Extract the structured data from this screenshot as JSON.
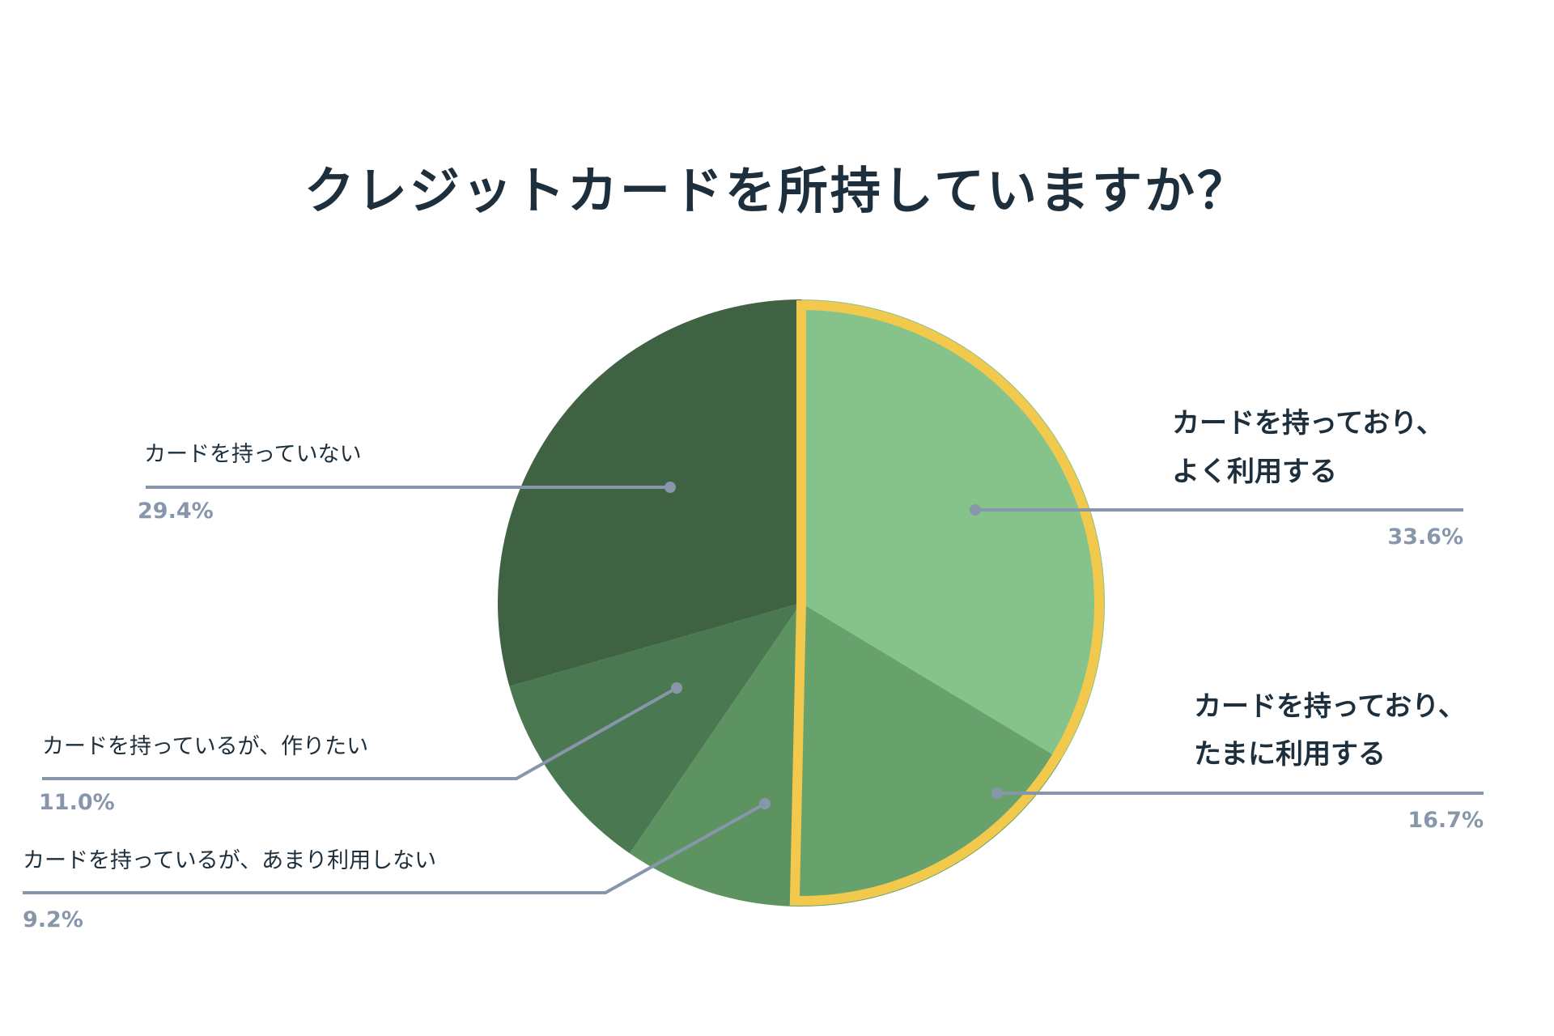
{
  "chart_data": {
    "type": "pie",
    "title": "クレジットカードを所持していますか？",
    "slices": [
      {
        "label": "カードを持っており、\nよく利用する",
        "value": 33.6,
        "value_label": "33.6%",
        "color": "#86c38a",
        "highlight": true
      },
      {
        "label": "カードを持っており、\nたまに利用する",
        "value": 16.7,
        "value_label": "16.7%",
        "color": "#67a26c",
        "highlight": true
      },
      {
        "label": "カードを持っているが、あまり利用しない",
        "value": 9.2,
        "value_label": "9.2%",
        "color": "#5d9361",
        "highlight": false
      },
      {
        "label": "カードを持っているが、作りたい",
        "value": 11.0,
        "value_label": "11.0%",
        "color": "#4a7850",
        "highlight": false
      },
      {
        "label": "カードを持っていない",
        "value": 29.4,
        "value_label": "29.4%",
        "color": "#3e6242",
        "highlight": false
      }
    ],
    "start": "12 o'clock",
    "direction": "clockwise",
    "highlight_color": "#f2c94c",
    "leader_color": "#8896ac",
    "label_color": "#1d2f3c",
    "value_color": "#8896ac"
  }
}
